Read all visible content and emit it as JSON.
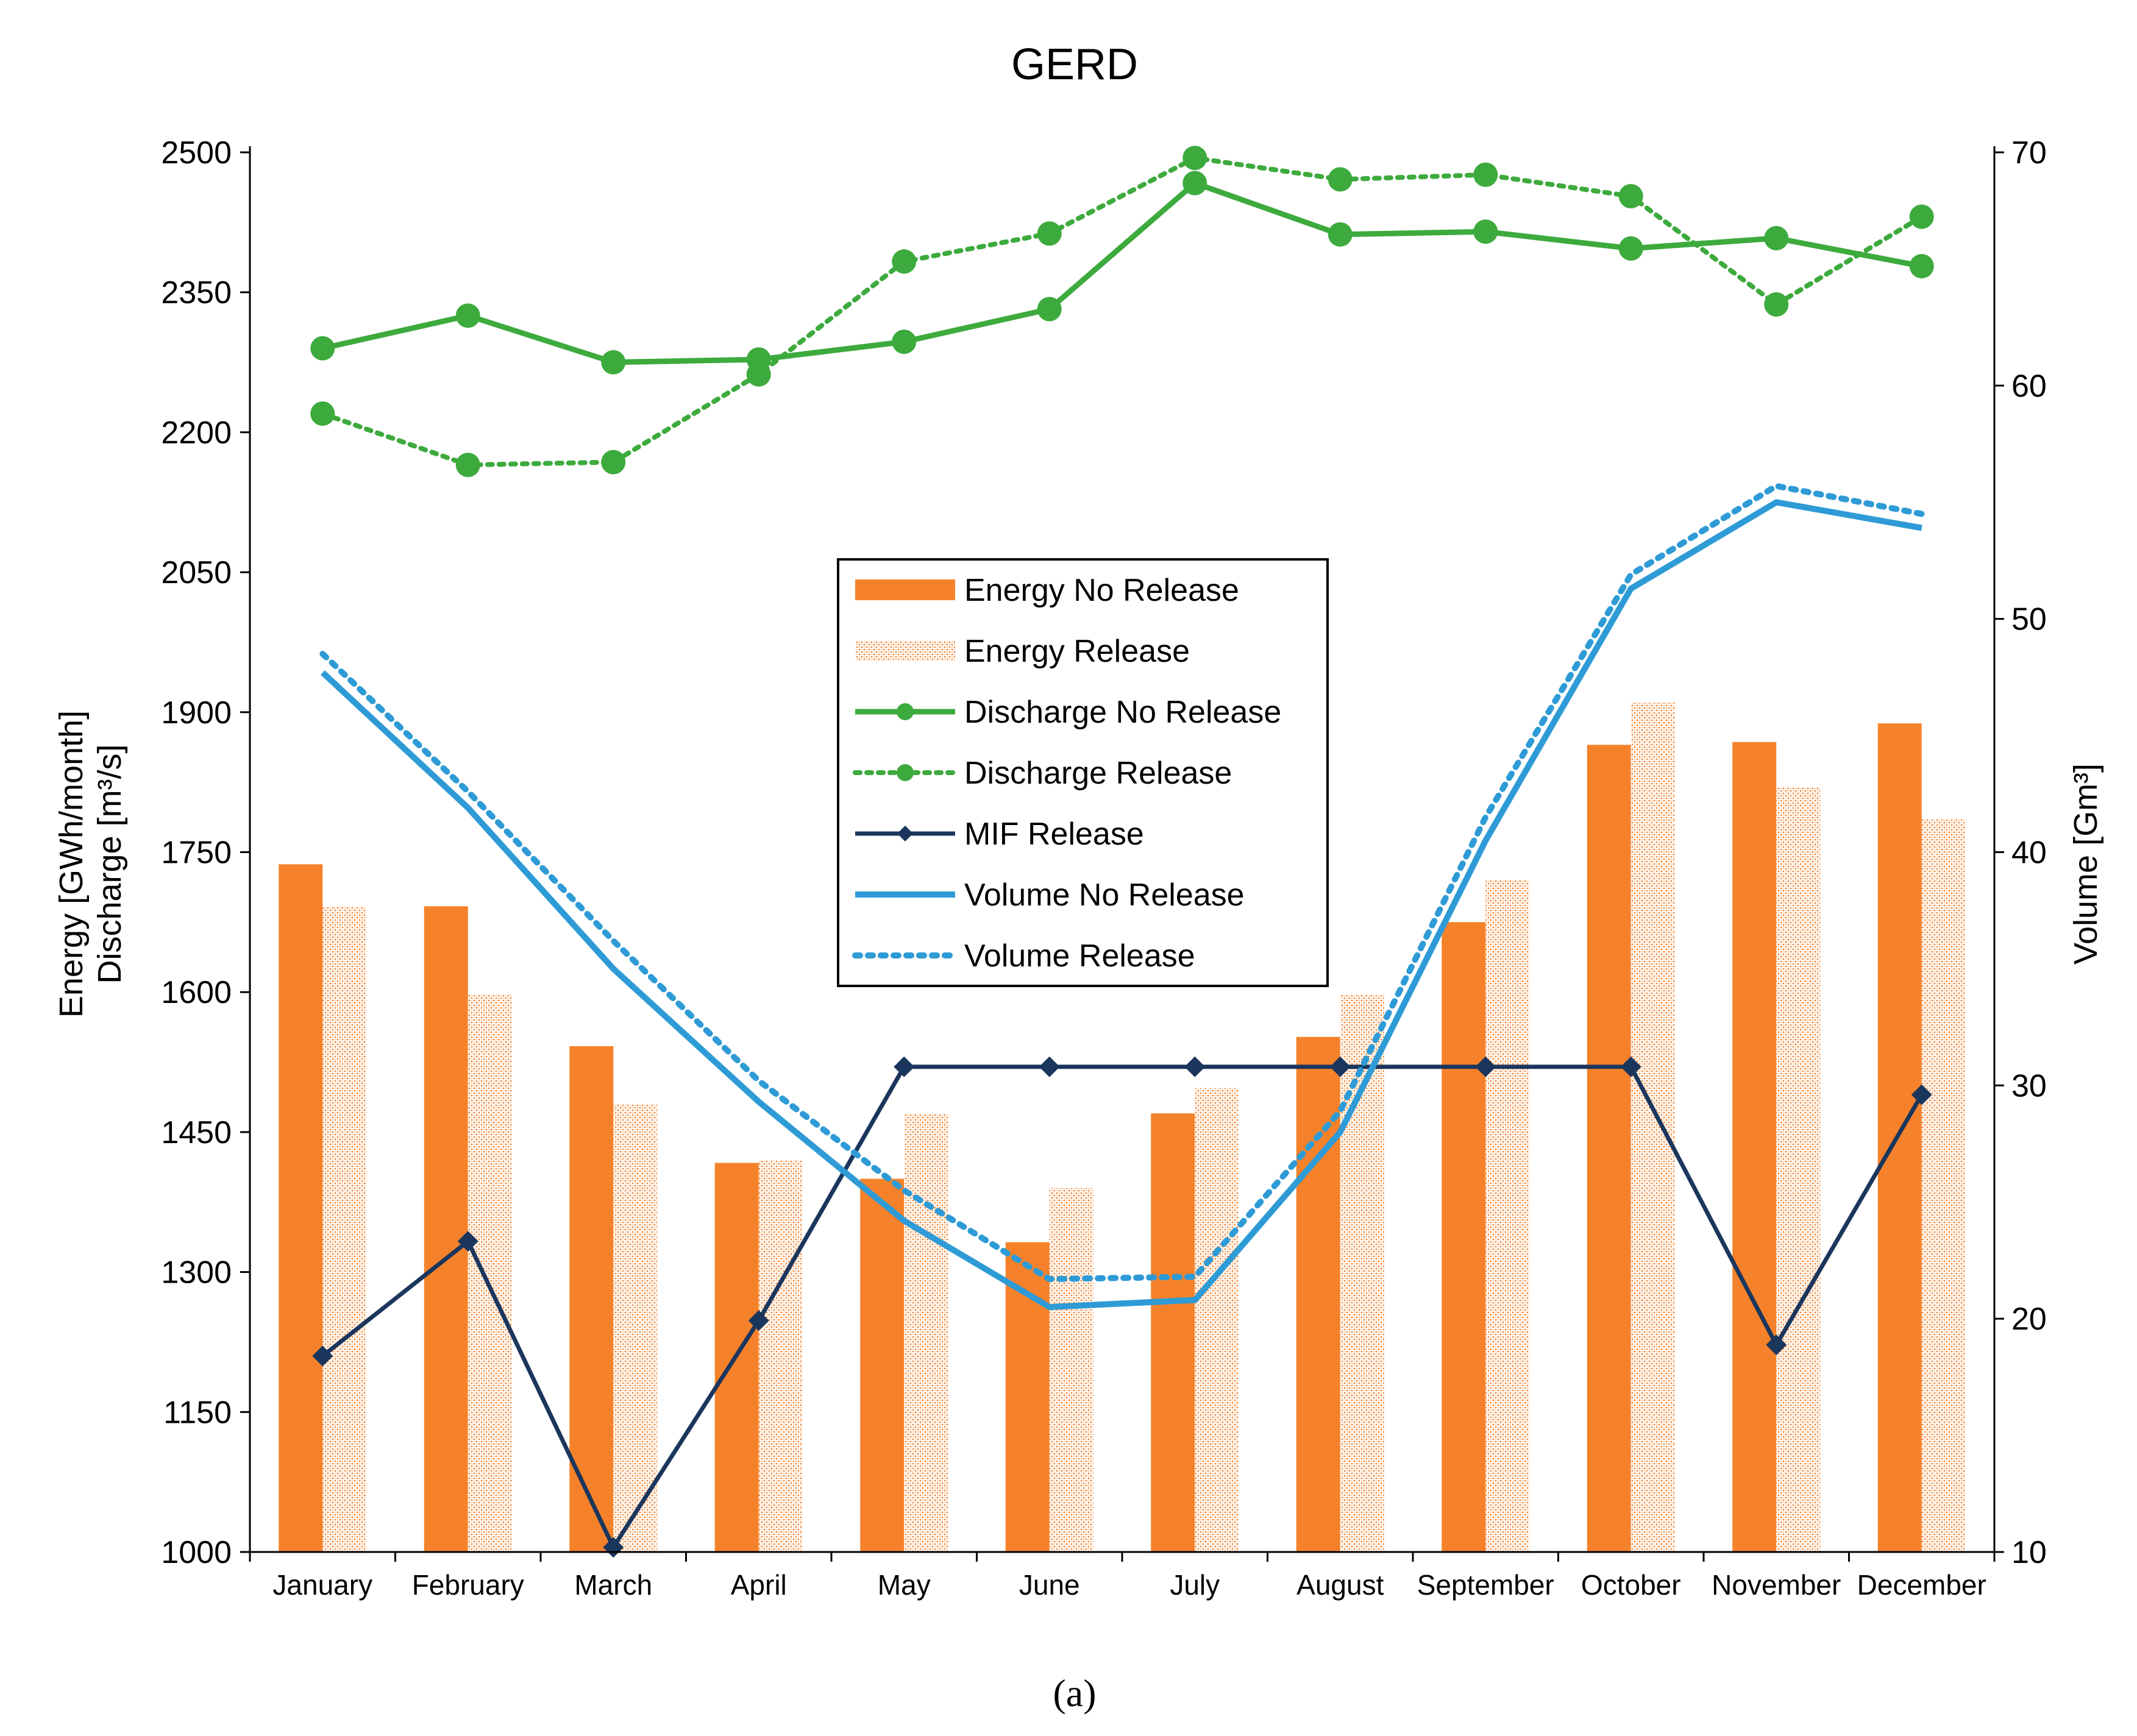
{
  "chart_data": {
    "type": "bar",
    "title": "GERD",
    "caption": "(a)",
    "categories": [
      "January",
      "February",
      "March",
      "April",
      "May",
      "June",
      "July",
      "August",
      "September",
      "October",
      "November",
      "December"
    ],
    "ylabel": [
      "Energy [GWh/month]",
      "Discharge [m³/s]"
    ],
    "y2label": "Volume [Gm³]",
    "ylim": [
      1000,
      2500
    ],
    "y2lim": [
      10,
      70
    ],
    "yticks": [
      "1000",
      "1150",
      "1300",
      "1450",
      "1600",
      "1750",
      "1900",
      "2050",
      "2200",
      "2350",
      "2500"
    ],
    "y2ticks": [
      "10",
      "20",
      "30",
      "40",
      "50",
      "60",
      "70"
    ],
    "grid": false,
    "legend_position": "center",
    "series": [
      {
        "name": "Energy No Release",
        "kind": "bar",
        "axis": "left",
        "color": "#F5822A",
        "values": [
          1737,
          1692,
          1542,
          1417,
          1400,
          1332,
          1470,
          1552,
          1675,
          1865,
          1868,
          1888
        ]
      },
      {
        "name": "Energy Release",
        "kind": "bar-hatched",
        "axis": "left",
        "color": "#F5822A",
        "values": [
          1692,
          1597,
          1480,
          1420,
          1470,
          1390,
          1497,
          1597,
          1720,
          1910,
          1820,
          1785
        ]
      },
      {
        "name": "Discharge No Release",
        "kind": "line-solid-marker",
        "axis": "left",
        "color": "#3DAA3D",
        "values": [
          2290,
          2325,
          2275,
          2278,
          2297,
          2332,
          2467,
          2412,
          2415,
          2397,
          2408,
          2378
        ]
      },
      {
        "name": "Discharge Release",
        "kind": "line-dotted-marker",
        "axis": "left",
        "color": "#3DAA3D",
        "values": [
          2220,
          2165,
          2168,
          2262,
          2383,
          2413,
          2494,
          2471,
          2476,
          2453,
          2337,
          2431
        ]
      },
      {
        "name": "MIF Release",
        "kind": "line-diamond",
        "axis": "left",
        "color": "#1B365D",
        "values": [
          1210,
          1333,
          1005,
          1248,
          1520,
          1520,
          1520,
          1520,
          1520,
          1520,
          1222,
          1490
        ]
      },
      {
        "name": "Volume No Release",
        "kind": "line-solid",
        "axis": "right",
        "color": "#2E9BD6",
        "values": [
          47.7,
          41.9,
          35.0,
          29.3,
          24.2,
          20.5,
          20.8,
          28.0,
          40.5,
          51.3,
          55.0,
          53.9
        ]
      },
      {
        "name": "Volume Release",
        "kind": "line-dotted",
        "axis": "right",
        "color": "#2E9BD6",
        "values": [
          48.5,
          42.6,
          36.2,
          30.2,
          25.5,
          21.7,
          21.8,
          28.9,
          41.5,
          51.9,
          55.7,
          54.5
        ]
      }
    ]
  }
}
